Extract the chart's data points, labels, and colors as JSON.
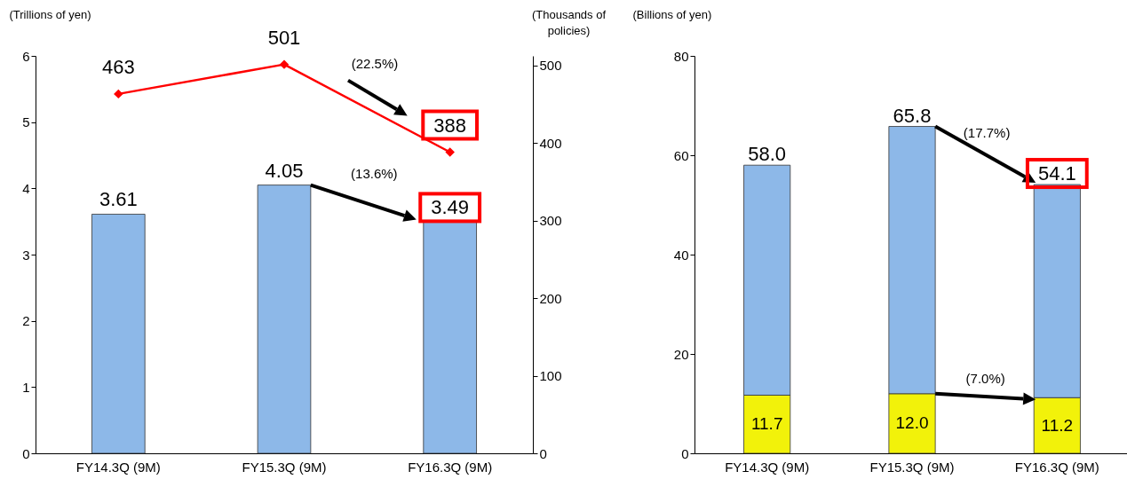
{
  "chart_data": [
    {
      "type": "bar",
      "categories": [
        "FY14.3Q (9M)",
        "FY15.3Q (9M)",
        "FY16.3Q (9M)"
      ],
      "series": [
        {
          "values": [
            3.61,
            4.05,
            3.49
          ],
          "color": "#8db8e8"
        },
        {
          "type": "line",
          "axis": "y2",
          "values": [
            463,
            501,
            388
          ],
          "color": "#ff0000"
        }
      ],
      "data_labels": true,
      "ylabel": "(Trillions of yen)",
      "y2label": "(Thousands of policies)",
      "ylim": [
        0,
        6
      ],
      "yticks": [
        0,
        1,
        2,
        3,
        4,
        5,
        6
      ],
      "y2lim": [
        0,
        512
      ],
      "y2ticks": [
        0,
        100,
        200,
        300,
        400,
        500
      ],
      "marker": "diamond",
      "line_style": "solid",
      "legend": false,
      "grid": false,
      "annotations": [
        "(22.5%)",
        "(13.6%)"
      ]
    },
    {
      "type": "bar",
      "stacked": true,
      "categories": [
        "FY14.3Q (9M)",
        "FY15.3Q (9M)",
        "FY16.3Q (9M)"
      ],
      "series": [
        {
          "values": [
            11.7,
            12.0,
            11.2
          ],
          "color": "#f2f20a",
          "value_labels": [
            "11.7",
            "12.0",
            "11.2"
          ]
        },
        {
          "values": [
            46.3,
            53.8,
            42.9
          ],
          "color": "#8db8e8"
        }
      ],
      "totals": [
        "58.0",
        "65.8",
        "54.1"
      ],
      "ylabel": "(Billions of yen)",
      "ylim": [
        0,
        80
      ],
      "yticks": [
        0,
        20,
        40,
        60,
        80
      ],
      "legend": false,
      "grid": false,
      "annotations": [
        "(17.7%)",
        "(7.0%)"
      ]
    }
  ]
}
